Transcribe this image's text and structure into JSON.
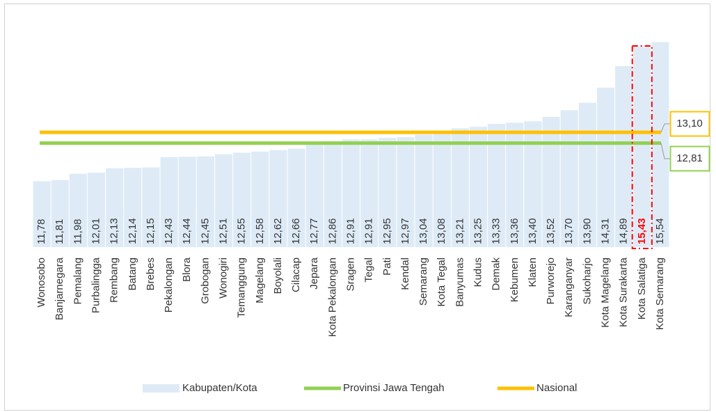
{
  "chart_data": {
    "type": "bar",
    "categories": [
      "Wonosobo",
      "Banjarnegara",
      "Pemalang",
      "Purbalingga",
      "Rembang",
      "Batang",
      "Brebes",
      "Pekalongan",
      "Blora",
      "Grobogan",
      "Wonogiri",
      "Temanggung",
      "Magelang",
      "Boyolali",
      "Cilacap",
      "Jepara",
      "Kota Pekalongan",
      "Sragen",
      "Tegal",
      "Pati",
      "Kendal",
      "Semarang",
      "Kota Tegal",
      "Banyumas",
      "Kudus",
      "Demak",
      "Kebumen",
      "Klaten",
      "Purworejo",
      "Karanganyar",
      "Sukoharjo",
      "Kota Magelang",
      "Kota Surakarta",
      "Kota Salatiga",
      "Kota Semarang"
    ],
    "series": [
      {
        "name": "Kabupaten/Kota",
        "color": "#deebf7",
        "values": [
          11.78,
          11.81,
          11.98,
          12.01,
          12.13,
          12.14,
          12.15,
          12.43,
          12.44,
          12.45,
          12.51,
          12.55,
          12.58,
          12.62,
          12.66,
          12.77,
          12.86,
          12.91,
          12.91,
          12.95,
          12.97,
          13.04,
          13.08,
          13.21,
          13.25,
          13.33,
          13.36,
          13.4,
          13.52,
          13.7,
          13.9,
          14.31,
          14.89,
          15.43,
          15.54
        ],
        "value_labels": [
          "11,78",
          "11,81",
          "11,98",
          "12,01",
          "12,13",
          "12,14",
          "12,15",
          "12,43",
          "12,44",
          "12,45",
          "12,51",
          "12,55",
          "12,58",
          "12,62",
          "12,66",
          "12,77",
          "12,86",
          "12,91",
          "12,91",
          "12,95",
          "12,97",
          "13,04",
          "13,08",
          "13,21",
          "13,25",
          "13,33",
          "13,36",
          "13,40",
          "13,52",
          "13,70",
          "13,90",
          "14,31",
          "14,89",
          "15,43",
          "15,54"
        ]
      }
    ],
    "reference_lines": [
      {
        "name": "Provinsi Jawa Tengah",
        "value": 12.81,
        "value_label": "12,81",
        "color": "#92d050"
      },
      {
        "name": "Nasional",
        "value": 13.1,
        "value_label": "13,10",
        "color": "#ffc000"
      }
    ],
    "highlight_category": "Kota Salatiga",
    "highlight_color": "#ff0000",
    "ylim": [
      10,
      16.3
    ]
  }
}
